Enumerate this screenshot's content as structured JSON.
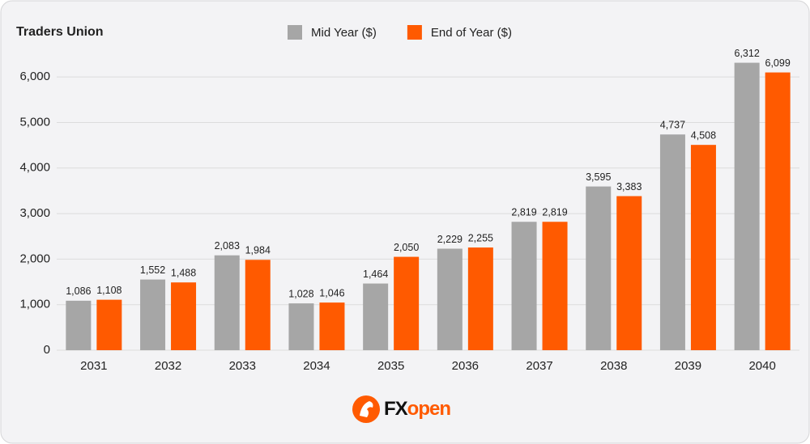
{
  "chart_data": {
    "type": "bar",
    "title": "Traders Union",
    "categories": [
      "2031",
      "2032",
      "2033",
      "2034",
      "2035",
      "2036",
      "2037",
      "2038",
      "2039",
      "2040"
    ],
    "series": [
      {
        "name": "Mid Year ($)",
        "color": "#a6a6a6",
        "values": [
          1086,
          1552,
          2083,
          1028,
          1464,
          2229,
          2819,
          3595,
          4737,
          6312
        ],
        "value_labels": [
          "1,086",
          "1,552",
          "2,083",
          "1,028",
          "1,464",
          "2,229",
          "2,819",
          "3,595",
          "4,737",
          "6,312"
        ]
      },
      {
        "name": "End of Year ($)",
        "color": "#ff5a00",
        "values": [
          1108,
          1488,
          1984,
          1046,
          2050,
          2255,
          2819,
          3383,
          4508,
          6099
        ],
        "value_labels": [
          "1,108",
          "1,488",
          "1,984",
          "1,046",
          "2,050",
          "2,255",
          "2,819",
          "3,383",
          "4,508",
          "6,099"
        ]
      }
    ],
    "ylim": [
      0,
      6500
    ],
    "yticks": [
      0,
      {
        "value": 1000,
        "label": "1,000"
      },
      {
        "value": 2000,
        "label": "2,000"
      },
      {
        "value": 3000,
        "label": "3,000"
      },
      {
        "value": 4000,
        "label": "4,000"
      },
      {
        "value": 5000,
        "label": "5,000"
      },
      {
        "value": 6000,
        "label": "6,000"
      }
    ],
    "grid": true,
    "legend": "top"
  },
  "logo": {
    "dark": "FX",
    "accent": "open"
  }
}
